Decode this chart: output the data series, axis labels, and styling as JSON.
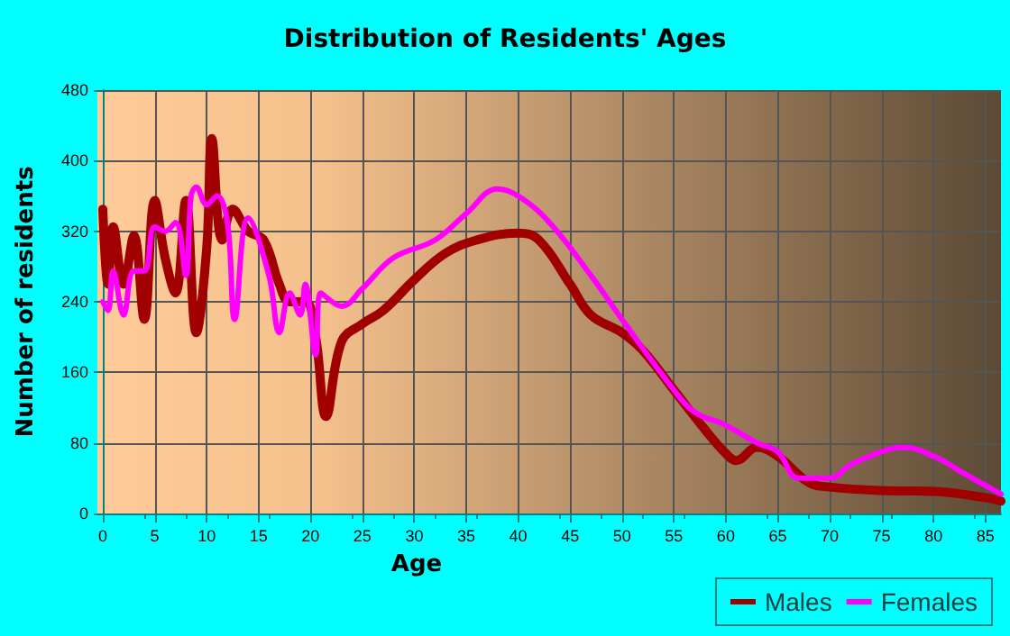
{
  "chart_data": {
    "type": "line",
    "title": "Distribution of Residents' Ages",
    "xlabel": "Age",
    "ylabel": "Number of residents",
    "xlim": [
      0,
      86.5
    ],
    "xticks": [
      0,
      5,
      10,
      15,
      20,
      25,
      30,
      35,
      40,
      45,
      50,
      55,
      60,
      65,
      70,
      75,
      80,
      85
    ],
    "ylim": [
      0,
      480
    ],
    "yticks": [
      0,
      80,
      160,
      240,
      320,
      400,
      480
    ],
    "grid": true,
    "legend": "bottom right",
    "marker": "none",
    "line_style": "solid",
    "series": [
      {
        "name": "Males",
        "color": "#a00000",
        "x": [
          0,
          0.5,
          1,
          2,
          3,
          4,
          5,
          6,
          7,
          8,
          9,
          10,
          10.5,
          11.5,
          12.5,
          14,
          15.5,
          17,
          18,
          19.5,
          20.5,
          21.5,
          23,
          25,
          27,
          30,
          33,
          36,
          40,
          42,
          45,
          47,
          50,
          52,
          55,
          58,
          60,
          61,
          63,
          65,
          68,
          70,
          75,
          80,
          85,
          86.5
        ],
        "values": [
          345,
          260,
          325,
          260,
          315,
          220,
          355,
          290,
          250,
          355,
          205,
          300,
          425,
          310,
          345,
          320,
          310,
          260,
          240,
          240,
          200,
          110,
          195,
          215,
          230,
          265,
          295,
          310,
          318,
          310,
          260,
          225,
          205,
          185,
          140,
          95,
          68,
          60,
          75,
          65,
          35,
          30,
          26,
          25,
          18,
          14
        ]
      },
      {
        "name": "Females",
        "color": "#ff00ff",
        "x": [
          0,
          0.5,
          1,
          2,
          3,
          4,
          5,
          6,
          7,
          8,
          8.5,
          9,
          10,
          11,
          12,
          12.7,
          14,
          16,
          17,
          18,
          19,
          19.5,
          20.5,
          21,
          23,
          25,
          28,
          32,
          35,
          38,
          40,
          43,
          47,
          50,
          55,
          57,
          60,
          63,
          65,
          67,
          70,
          72,
          75,
          77,
          80,
          83,
          86.5
        ],
        "values": [
          240,
          230,
          275,
          225,
          275,
          275,
          325,
          320,
          330,
          270,
          360,
          370,
          350,
          360,
          330,
          220,
          335,
          270,
          205,
          250,
          225,
          260,
          180,
          250,
          235,
          255,
          290,
          310,
          340,
          368,
          360,
          330,
          270,
          220,
          140,
          115,
          100,
          80,
          70,
          40,
          40,
          55,
          70,
          75,
          65,
          45,
          22
        ]
      }
    ]
  }
}
